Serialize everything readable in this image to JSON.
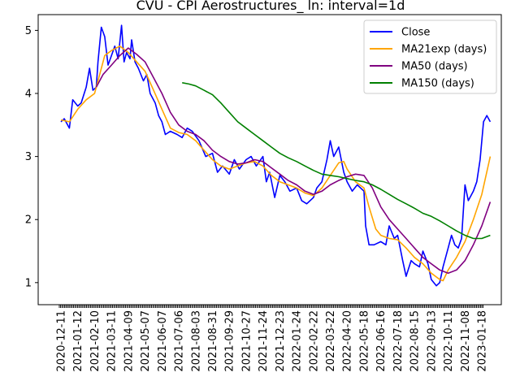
{
  "chart_data": {
    "type": "line",
    "title": "CVU - CPI Aerostructures_ ln: interval=1d",
    "xlabel": "",
    "ylabel": "",
    "ylim": [
      0.65,
      5.25
    ],
    "yticks": [
      1,
      2,
      3,
      4,
      5
    ],
    "x_ticks": [
      "2020-12-11",
      "2021-01-12",
      "2021-02-10",
      "2021-03-11",
      "2021-04-09",
      "2021-05-07",
      "2021-06-07",
      "2021-07-06",
      "2021-08-03",
      "2021-08-31",
      "2021-09-29",
      "2021-10-27",
      "2021-11-24",
      "2021-12-23",
      "2022-01-24",
      "2022-02-22",
      "2022-03-22",
      "2022-04-20",
      "2022-05-18",
      "2022-06-16",
      "2022-07-18",
      "2022-08-15",
      "2022-09-13",
      "2022-10-11",
      "2022-11-08",
      "2023-01-18"
    ],
    "legend_position": "upper right",
    "series": [
      {
        "name": "Close",
        "color": "#0000ff",
        "points": [
          [
            0,
            3.55
          ],
          [
            0.2,
            3.6
          ],
          [
            0.5,
            3.45
          ],
          [
            0.7,
            3.9
          ],
          [
            1,
            3.8
          ],
          [
            1.2,
            3.85
          ],
          [
            1.5,
            4.1
          ],
          [
            1.7,
            4.4
          ],
          [
            1.9,
            4.05
          ],
          [
            2.1,
            4.1
          ],
          [
            2.2,
            4.5
          ],
          [
            2.4,
            5.05
          ],
          [
            2.6,
            4.9
          ],
          [
            2.8,
            4.45
          ],
          [
            3,
            4.6
          ],
          [
            3.2,
            4.75
          ],
          [
            3.4,
            4.55
          ],
          [
            3.6,
            5.08
          ],
          [
            3.75,
            4.5
          ],
          [
            3.9,
            4.65
          ],
          [
            4.1,
            4.55
          ],
          [
            4.2,
            4.85
          ],
          [
            4.4,
            4.5
          ],
          [
            4.6,
            4.4
          ],
          [
            4.9,
            4.2
          ],
          [
            5.1,
            4.3
          ],
          [
            5.3,
            4.0
          ],
          [
            5.6,
            3.85
          ],
          [
            5.8,
            3.65
          ],
          [
            6,
            3.55
          ],
          [
            6.2,
            3.35
          ],
          [
            6.5,
            3.4
          ],
          [
            6.9,
            3.35
          ],
          [
            7.2,
            3.3
          ],
          [
            7.5,
            3.45
          ],
          [
            7.8,
            3.4
          ],
          [
            8.2,
            3.25
          ],
          [
            8.6,
            3.0
          ],
          [
            9,
            3.05
          ],
          [
            9.3,
            2.75
          ],
          [
            9.6,
            2.85
          ],
          [
            10,
            2.72
          ],
          [
            10.3,
            2.95
          ],
          [
            10.6,
            2.8
          ],
          [
            11,
            2.95
          ],
          [
            11.3,
            3.0
          ],
          [
            11.6,
            2.85
          ],
          [
            12,
            3.0
          ],
          [
            12.2,
            2.6
          ],
          [
            12.4,
            2.75
          ],
          [
            12.7,
            2.35
          ],
          [
            13,
            2.7
          ],
          [
            13.3,
            2.6
          ],
          [
            13.6,
            2.45
          ],
          [
            14,
            2.5
          ],
          [
            14.3,
            2.3
          ],
          [
            14.6,
            2.25
          ],
          [
            15,
            2.35
          ],
          [
            15.2,
            2.5
          ],
          [
            15.5,
            2.6
          ],
          [
            15.8,
            2.95
          ],
          [
            16,
            3.25
          ],
          [
            16.2,
            3.0
          ],
          [
            16.5,
            3.15
          ],
          [
            16.8,
            2.75
          ],
          [
            17,
            2.6
          ],
          [
            17.3,
            2.45
          ],
          [
            17.6,
            2.55
          ],
          [
            18,
            2.45
          ],
          [
            18.1,
            1.9
          ],
          [
            18.3,
            1.6
          ],
          [
            18.6,
            1.6
          ],
          [
            19,
            1.65
          ],
          [
            19.3,
            1.6
          ],
          [
            19.5,
            1.9
          ],
          [
            19.8,
            1.7
          ],
          [
            20,
            1.75
          ],
          [
            20.3,
            1.35
          ],
          [
            20.5,
            1.1
          ],
          [
            20.8,
            1.35
          ],
          [
            21,
            1.3
          ],
          [
            21.3,
            1.25
          ],
          [
            21.5,
            1.5
          ],
          [
            21.8,
            1.3
          ],
          [
            22,
            1.05
          ],
          [
            22.3,
            0.95
          ],
          [
            22.5,
            1.0
          ],
          [
            22.7,
            1.25
          ],
          [
            23,
            1.55
          ],
          [
            23.2,
            1.75
          ],
          [
            23.4,
            1.6
          ],
          [
            23.6,
            1.55
          ],
          [
            23.8,
            1.7
          ],
          [
            24,
            2.55
          ],
          [
            24.2,
            2.3
          ],
          [
            24.5,
            2.45
          ],
          [
            24.7,
            2.6
          ],
          [
            24.9,
            2.95
          ],
          [
            25.1,
            3.55
          ],
          [
            25.3,
            3.65
          ],
          [
            25.5,
            3.55
          ]
        ]
      },
      {
        "name": "MA21exp (days)",
        "color": "#ffa500",
        "points": [
          [
            0,
            3.58
          ],
          [
            0.5,
            3.55
          ],
          [
            1,
            3.75
          ],
          [
            1.5,
            3.9
          ],
          [
            2,
            4.0
          ],
          [
            2.3,
            4.3
          ],
          [
            2.6,
            4.6
          ],
          [
            3,
            4.68
          ],
          [
            3.5,
            4.75
          ],
          [
            4,
            4.65
          ],
          [
            4.5,
            4.5
          ],
          [
            5,
            4.35
          ],
          [
            5.5,
            4.05
          ],
          [
            6,
            3.75
          ],
          [
            6.5,
            3.45
          ],
          [
            7,
            3.38
          ],
          [
            7.5,
            3.35
          ],
          [
            8,
            3.25
          ],
          [
            8.5,
            3.1
          ],
          [
            9,
            2.95
          ],
          [
            9.5,
            2.85
          ],
          [
            10,
            2.8
          ],
          [
            10.5,
            2.85
          ],
          [
            11,
            2.9
          ],
          [
            11.5,
            2.92
          ],
          [
            12,
            2.85
          ],
          [
            12.5,
            2.7
          ],
          [
            13,
            2.6
          ],
          [
            13.5,
            2.55
          ],
          [
            14,
            2.5
          ],
          [
            14.5,
            2.42
          ],
          [
            15,
            2.38
          ],
          [
            15.5,
            2.5
          ],
          [
            16,
            2.7
          ],
          [
            16.5,
            2.9
          ],
          [
            16.8,
            2.92
          ],
          [
            17,
            2.8
          ],
          [
            17.5,
            2.6
          ],
          [
            18,
            2.5
          ],
          [
            18.3,
            2.2
          ],
          [
            18.7,
            1.85
          ],
          [
            19,
            1.75
          ],
          [
            19.5,
            1.7
          ],
          [
            20,
            1.68
          ],
          [
            20.5,
            1.55
          ],
          [
            21,
            1.4
          ],
          [
            21.5,
            1.3
          ],
          [
            22,
            1.15
          ],
          [
            22.5,
            1.05
          ],
          [
            22.7,
            1.03
          ],
          [
            23,
            1.2
          ],
          [
            23.5,
            1.4
          ],
          [
            24,
            1.65
          ],
          [
            24.5,
            2.0
          ],
          [
            25,
            2.4
          ],
          [
            25.5,
            3.0
          ]
        ]
      },
      {
        "name": "MA50 (days)",
        "color": "#800080",
        "points": [
          [
            2.1,
            4.1
          ],
          [
            2.5,
            4.3
          ],
          [
            3,
            4.45
          ],
          [
            3.5,
            4.6
          ],
          [
            4,
            4.72
          ],
          [
            4.5,
            4.62
          ],
          [
            5,
            4.5
          ],
          [
            5.5,
            4.25
          ],
          [
            6,
            4.0
          ],
          [
            6.5,
            3.7
          ],
          [
            7,
            3.5
          ],
          [
            7.5,
            3.4
          ],
          [
            8,
            3.35
          ],
          [
            8.5,
            3.25
          ],
          [
            9,
            3.1
          ],
          [
            9.5,
            3.0
          ],
          [
            10,
            2.92
          ],
          [
            10.5,
            2.88
          ],
          [
            11,
            2.9
          ],
          [
            11.5,
            2.95
          ],
          [
            12,
            2.92
          ],
          [
            12.5,
            2.82
          ],
          [
            13,
            2.72
          ],
          [
            13.5,
            2.62
          ],
          [
            14,
            2.55
          ],
          [
            14.5,
            2.45
          ],
          [
            15,
            2.4
          ],
          [
            15.5,
            2.45
          ],
          [
            16,
            2.55
          ],
          [
            16.5,
            2.62
          ],
          [
            17,
            2.68
          ],
          [
            17.5,
            2.72
          ],
          [
            18,
            2.7
          ],
          [
            18.5,
            2.5
          ],
          [
            19,
            2.2
          ],
          [
            19.5,
            2.0
          ],
          [
            20,
            1.85
          ],
          [
            20.5,
            1.7
          ],
          [
            21,
            1.55
          ],
          [
            21.5,
            1.4
          ],
          [
            22,
            1.3
          ],
          [
            22.5,
            1.2
          ],
          [
            23,
            1.15
          ],
          [
            23.5,
            1.2
          ],
          [
            24,
            1.35
          ],
          [
            24.5,
            1.6
          ],
          [
            25,
            1.9
          ],
          [
            25.5,
            2.28
          ]
        ]
      },
      {
        "name": "MA150 (days)",
        "color": "#008000",
        "points": [
          [
            7.2,
            4.17
          ],
          [
            7.6,
            4.15
          ],
          [
            8,
            4.12
          ],
          [
            8.5,
            4.05
          ],
          [
            9,
            3.98
          ],
          [
            9.5,
            3.85
          ],
          [
            10,
            3.7
          ],
          [
            10.5,
            3.55
          ],
          [
            11,
            3.45
          ],
          [
            11.5,
            3.35
          ],
          [
            12,
            3.25
          ],
          [
            12.5,
            3.15
          ],
          [
            13,
            3.05
          ],
          [
            13.5,
            2.98
          ],
          [
            14,
            2.92
          ],
          [
            14.5,
            2.85
          ],
          [
            15,
            2.78
          ],
          [
            15.5,
            2.72
          ],
          [
            16,
            2.7
          ],
          [
            16.5,
            2.68
          ],
          [
            17,
            2.65
          ],
          [
            17.5,
            2.62
          ],
          [
            18,
            2.6
          ],
          [
            18.5,
            2.55
          ],
          [
            19,
            2.48
          ],
          [
            19.5,
            2.4
          ],
          [
            20,
            2.32
          ],
          [
            20.5,
            2.25
          ],
          [
            21,
            2.18
          ],
          [
            21.5,
            2.1
          ],
          [
            22,
            2.05
          ],
          [
            22.5,
            1.98
          ],
          [
            23,
            1.9
          ],
          [
            23.5,
            1.82
          ],
          [
            24,
            1.75
          ],
          [
            24.5,
            1.7
          ],
          [
            25,
            1.7
          ],
          [
            25.5,
            1.75
          ]
        ]
      }
    ]
  }
}
